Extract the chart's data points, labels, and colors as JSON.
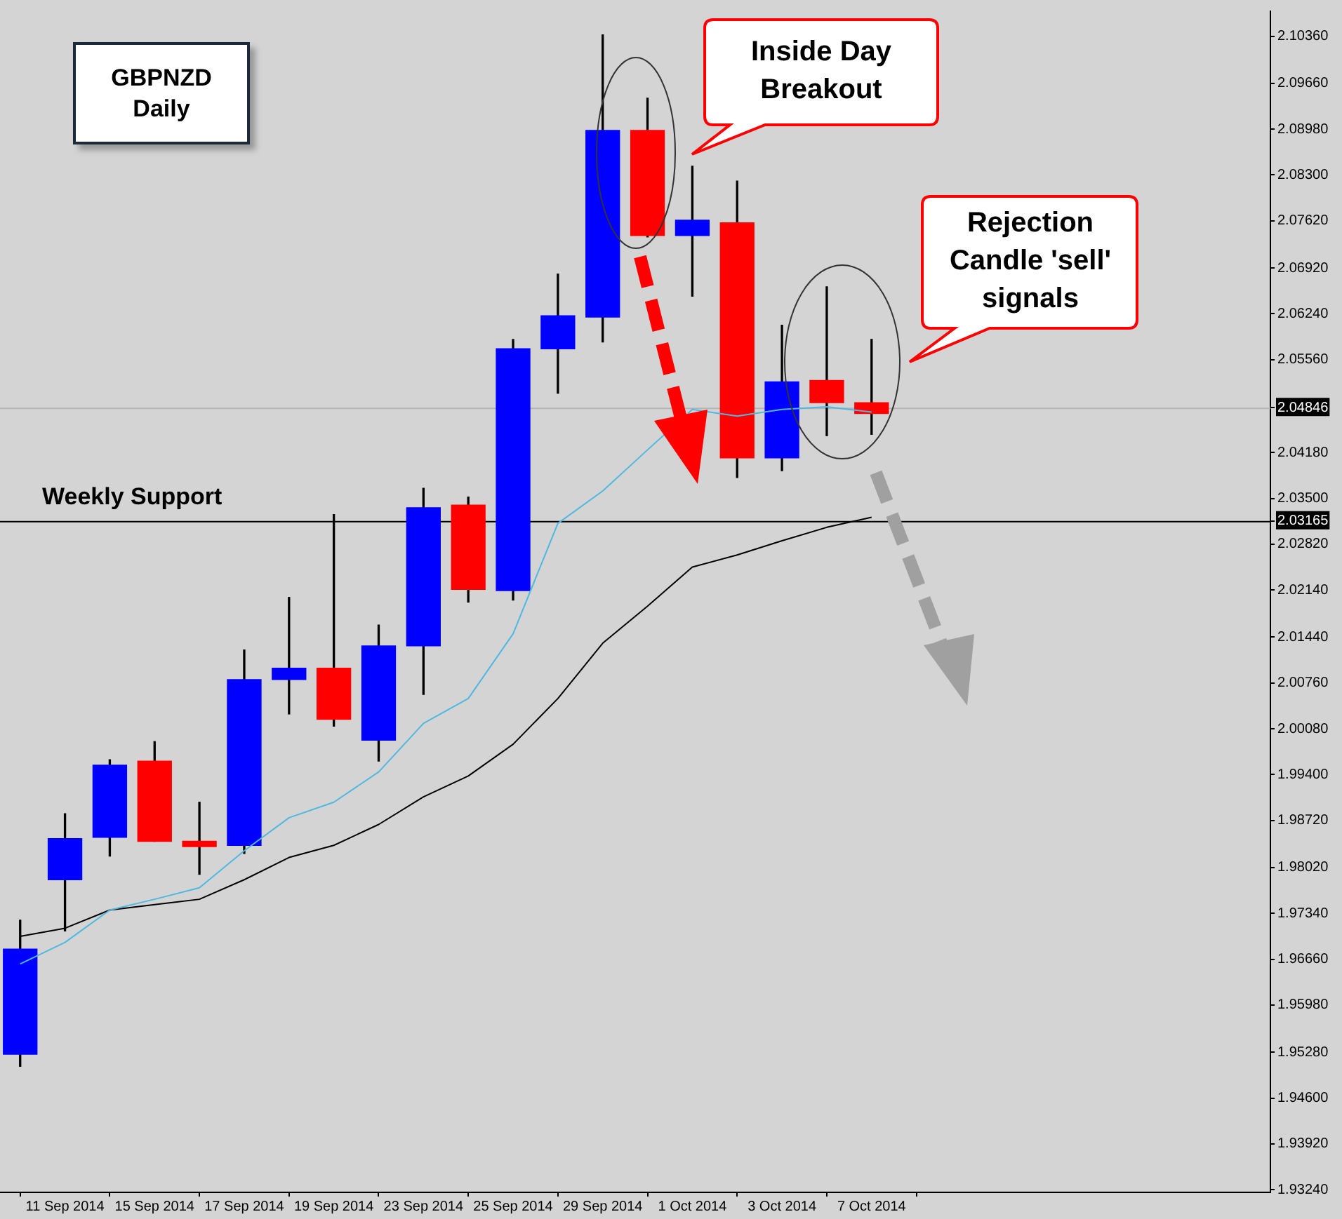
{
  "chart_data": {
    "type": "candlestick",
    "title": "GBPNZD Daily",
    "categories": [
      null,
      "11 Sep 2014",
      null,
      "15 Sep 2014",
      null,
      "17 Sep 2014",
      null,
      "19 Sep 2014",
      null,
      "23 Sep 2014",
      null,
      "25 Sep 2014",
      null,
      "29 Sep 2014",
      null,
      "1 Oct 2014",
      null,
      "3 Oct 2014",
      null,
      "7 Oct 2014"
    ],
    "ohlc": [
      [
        1.9525,
        1.9724,
        1.9507,
        1.9681
      ],
      [
        1.9784,
        1.9882,
        1.9708,
        1.9845
      ],
      [
        1.9847,
        1.9962,
        1.9819,
        1.9954
      ],
      [
        1.996,
        1.9989,
        1.9841,
        1.9841
      ],
      [
        1.9841,
        1.9899,
        1.9792,
        1.9833
      ],
      [
        1.9835,
        2.0125,
        1.9823,
        2.0081
      ],
      [
        2.0081,
        2.0203,
        2.003,
        2.0098
      ],
      [
        2.0098,
        2.0326,
        2.0012,
        2.0022
      ],
      [
        1.9991,
        2.0162,
        1.996,
        2.0131
      ],
      [
        2.0131,
        2.0365,
        2.0059,
        2.0336
      ],
      [
        2.034,
        2.0352,
        2.0196,
        2.0215
      ],
      [
        2.0213,
        2.0586,
        2.0199,
        2.0572
      ],
      [
        2.0572,
        2.0683,
        2.0506,
        2.0621
      ],
      [
        2.0619,
        2.1038,
        2.0582,
        2.0896
      ],
      [
        2.0896,
        2.0944,
        2.0738,
        2.074
      ],
      [
        2.074,
        2.0843,
        2.065,
        2.0763
      ],
      [
        2.0759,
        2.0821,
        2.0381,
        2.041
      ],
      [
        2.041,
        2.0607,
        2.0391,
        2.0523
      ],
      [
        2.0525,
        2.0664,
        2.0443,
        2.0492
      ],
      [
        2.0492,
        2.0586,
        2.0445,
        2.0476
      ]
    ],
    "colors": [
      "#0000ff",
      "#0000ff",
      "#0000ff",
      "#ff0000",
      "#ff0000",
      "#0000ff",
      "#0000ff",
      "#ff0000",
      "#0000ff",
      "#0000ff",
      "#ff0000",
      "#0000ff",
      "#0000ff",
      "#0000ff",
      "#ff0000",
      "#0000ff",
      "#ff0000",
      "#0000ff",
      "#ff0000",
      "#ff0000"
    ],
    "series": [
      {
        "type": "line",
        "color": "#4fb8e0",
        "values": [
          1.9659,
          1.9691,
          1.9739,
          1.9755,
          1.9772,
          1.9827,
          1.9876,
          1.9899,
          1.9944,
          2.0016,
          2.0053,
          2.0149,
          2.0313,
          2.0361,
          2.0422,
          2.0482,
          2.0472,
          2.0482,
          2.0486,
          2.0478
        ]
      },
      {
        "type": "line",
        "color": "#000000",
        "values": [
          1.97,
          1.9712,
          1.9739,
          1.9747,
          1.9755,
          1.9784,
          1.9817,
          1.9835,
          1.9866,
          1.9907,
          1.9938,
          1.9985,
          2.0053,
          2.0135,
          2.019,
          2.0248,
          2.0266,
          2.0287,
          2.0307,
          2.0322
        ]
      }
    ],
    "marker": "none",
    "ylim": [
      1.932,
      2.1073
    ],
    "yticks": [
      {
        "value": 2.1036,
        "label": "2.10360"
      },
      {
        "value": 2.0966,
        "label": "2.09660"
      },
      {
        "value": 2.0898,
        "label": "2.08980"
      },
      {
        "value": 2.083,
        "label": "2.08300"
      },
      {
        "value": 2.0762,
        "label": "2.07620"
      },
      {
        "value": 2.0692,
        "label": "2.06920"
      },
      {
        "value": 2.0624,
        "label": "2.06240"
      },
      {
        "value": 2.0556,
        "label": "2.05560"
      },
      2.04846,
      {
        "value": 2.0418,
        "label": "2.04180"
      },
      2.03165,
      {
        "value": 2.035,
        "label": "2.03500"
      },
      {
        "value": 2.0282,
        "label": "2.02820"
      },
      {
        "value": 2.0214,
        "label": "2.02140"
      },
      {
        "value": 2.0144,
        "label": "2.01440"
      },
      {
        "value": 2.0076,
        "label": "2.00760"
      },
      {
        "value": 2.0008,
        "label": "2.00080"
      },
      {
        "value": 1.994,
        "label": "1.99400"
      },
      {
        "value": 1.9872,
        "label": "1.98720"
      },
      {
        "value": 1.9802,
        "label": "1.98020"
      },
      {
        "value": 1.9734,
        "label": "1.97340"
      },
      {
        "value": 1.9666,
        "label": "1.96660"
      },
      {
        "value": 1.9598,
        "label": "1.95980"
      },
      {
        "value": 1.9528,
        "label": "1.95280"
      },
      {
        "value": 1.946,
        "label": "1.94600"
      },
      {
        "value": 1.9392,
        "label": "1.93920"
      },
      {
        "value": 1.9324,
        "label": "1.93240"
      }
    ],
    "ref_lines": [
      {
        "axis": "y",
        "value": 2.03165,
        "label": "Weekly Support",
        "color": "#000000"
      },
      {
        "axis": "y",
        "value": 2.04846,
        "color": "#b4b4b4"
      }
    ],
    "annotations": [
      "Inside Day Breakout",
      "Rejection Candle 'sell' signals"
    ]
  }
}
